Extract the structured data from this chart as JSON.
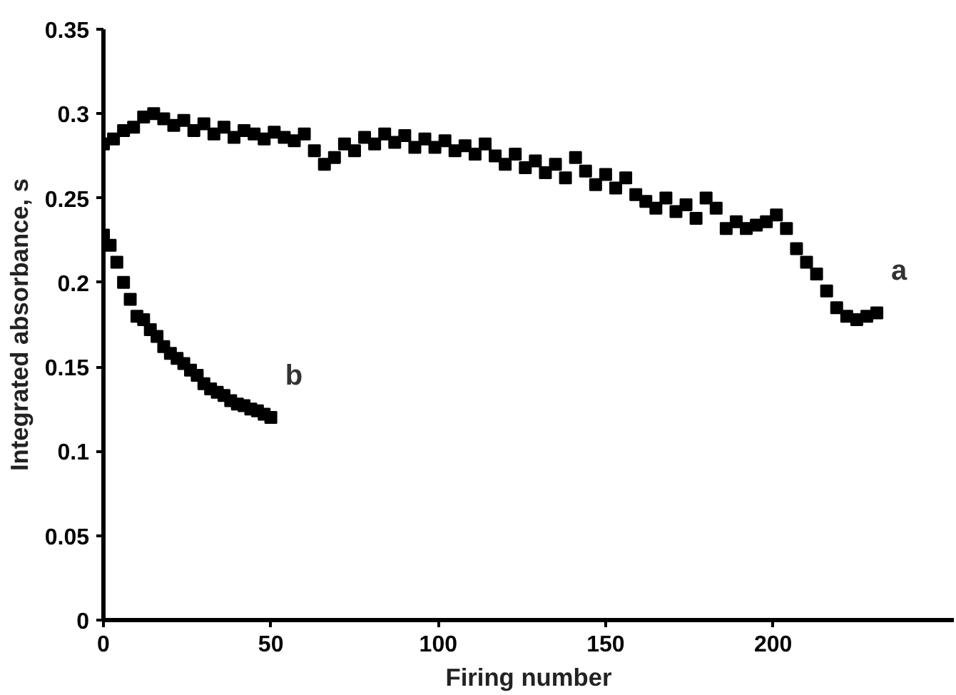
{
  "chart_data": {
    "type": "scatter",
    "xlabel": "Firing number",
    "ylabel": "Integrated absorbance, s",
    "xlim": [
      0,
      254
    ],
    "ylim": [
      0,
      0.35
    ],
    "xticks": [
      0,
      50,
      100,
      150,
      200
    ],
    "yticks": [
      0,
      0.05,
      0.1,
      0.15,
      0.2,
      0.25,
      0.3,
      0.35
    ],
    "grid": false,
    "legend": false,
    "marker": "square",
    "series": [
      {
        "name": "a",
        "color": "#000000",
        "x": [
          0,
          3,
          6,
          9,
          12,
          15,
          18,
          21,
          24,
          27,
          30,
          33,
          36,
          39,
          42,
          45,
          48,
          51,
          54,
          57,
          60,
          63,
          66,
          69,
          72,
          75,
          78,
          81,
          84,
          87,
          90,
          93,
          96,
          99,
          102,
          105,
          108,
          111,
          114,
          117,
          120,
          123,
          126,
          129,
          132,
          135,
          138,
          141,
          144,
          147,
          150,
          153,
          156,
          159,
          162,
          165,
          168,
          171,
          174,
          177,
          180,
          183,
          186,
          189,
          192,
          195,
          198,
          201,
          204,
          207,
          210,
          213,
          216,
          219,
          222,
          225,
          228,
          231
        ],
        "values": [
          0.282,
          0.285,
          0.29,
          0.292,
          0.298,
          0.3,
          0.297,
          0.293,
          0.296,
          0.29,
          0.294,
          0.288,
          0.292,
          0.286,
          0.29,
          0.288,
          0.285,
          0.289,
          0.286,
          0.284,
          0.288,
          0.278,
          0.27,
          0.274,
          0.282,
          0.278,
          0.286,
          0.282,
          0.288,
          0.283,
          0.287,
          0.28,
          0.285,
          0.28,
          0.284,
          0.278,
          0.281,
          0.276,
          0.282,
          0.275,
          0.27,
          0.276,
          0.268,
          0.272,
          0.265,
          0.27,
          0.262,
          0.274,
          0.266,
          0.258,
          0.264,
          0.256,
          0.262,
          0.252,
          0.248,
          0.244,
          0.25,
          0.242,
          0.246,
          0.238,
          0.25,
          0.244,
          0.232,
          0.236,
          0.232,
          0.234,
          0.236,
          0.24,
          0.232,
          0.22,
          0.212,
          0.205,
          0.195,
          0.185,
          0.18,
          0.178,
          0.18,
          0.182
        ]
      },
      {
        "name": "b",
        "color": "#000000",
        "x": [
          0,
          2,
          4,
          6,
          8,
          10,
          12,
          14,
          16,
          18,
          20,
          22,
          24,
          26,
          28,
          30,
          32,
          34,
          36,
          38,
          40,
          42,
          44,
          46,
          48,
          50
        ],
        "values": [
          0.228,
          0.222,
          0.212,
          0.2,
          0.19,
          0.18,
          0.178,
          0.172,
          0.168,
          0.162,
          0.158,
          0.155,
          0.152,
          0.148,
          0.145,
          0.14,
          0.137,
          0.135,
          0.133,
          0.13,
          0.128,
          0.127,
          0.125,
          0.124,
          0.122,
          0.12
        ]
      }
    ]
  }
}
